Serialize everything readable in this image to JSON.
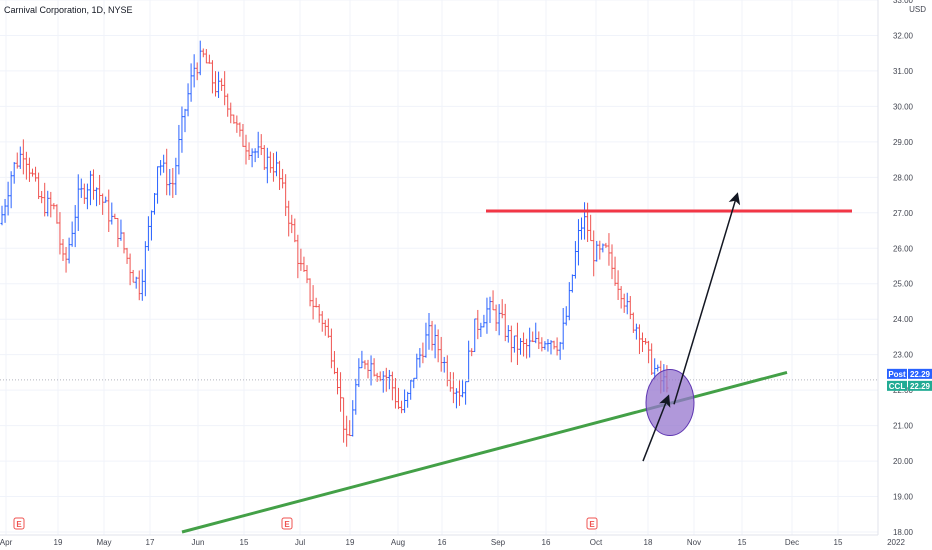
{
  "header": {
    "title": "Carnival Corporation, 1D, NYSE"
  },
  "chart_data": {
    "type": "ohlc",
    "currency": "USD",
    "ylim": [
      18.0,
      33.0
    ],
    "y_ticks": [
      "33.00",
      "32.00",
      "31.00",
      "30.00",
      "29.00",
      "28.00",
      "27.00",
      "26.00",
      "25.00",
      "24.00",
      "23.00",
      "22.00",
      "21.00",
      "20.00",
      "19.00",
      "18.00"
    ],
    "x_ticks": [
      "Apr",
      "19",
      "May",
      "17",
      "Jun",
      "15",
      "Jul",
      "19",
      "Aug",
      "16",
      "Sep",
      "16",
      "Oct",
      "18",
      "Nov",
      "15",
      "Dec",
      "15",
      "2022"
    ],
    "price_labels": [
      {
        "label": "Post",
        "value": "22.29",
        "color": "#2962ff"
      },
      {
        "label": "CCL",
        "value": "22.29",
        "color": "#22ab94"
      }
    ],
    "earnings_markers": [
      "E",
      "E",
      "E"
    ],
    "colors": {
      "up": "#2962ff",
      "down": "#ef5350",
      "support": "#43a047",
      "resistance": "#f23645",
      "highlight": "#9575cd"
    },
    "resistance_level": 27.05,
    "support_line": {
      "from": [
        18.0,
        0.0
      ],
      "to": [
        22.5,
        0.84
      ]
    },
    "projection_arrows": [
      "arrow-short",
      "arrow-long"
    ]
  }
}
